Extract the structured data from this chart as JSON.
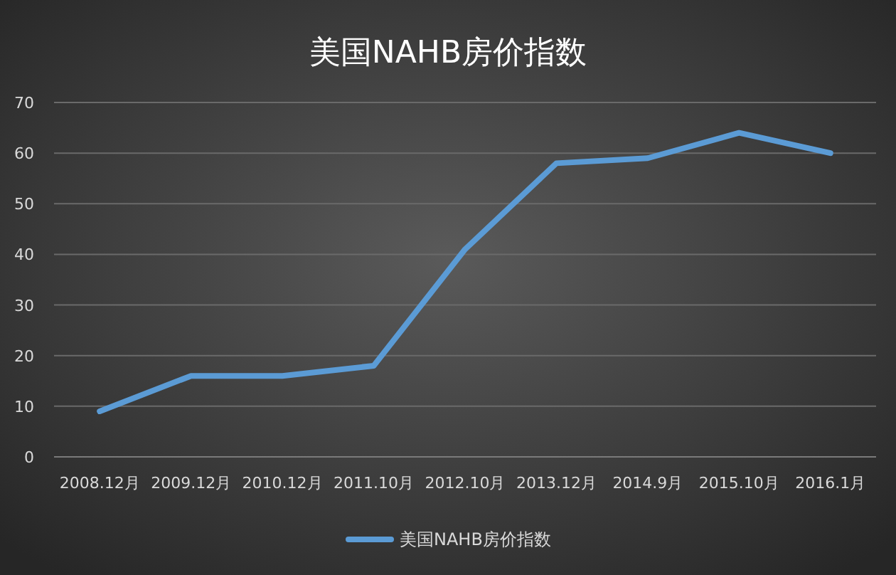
{
  "chart_data": {
    "type": "line",
    "title": "美国NAHB房价指数",
    "categories": [
      "2008.12月",
      "2009.12月",
      "2010.12月",
      "2011.10月",
      "2012.10月",
      "2013.12月",
      "2014.9月",
      "2015.10月",
      "2016.1月"
    ],
    "series": [
      {
        "name": "美国NAHB房价指数",
        "color": "#5b9bd5",
        "values": [
          9,
          16,
          16,
          18,
          41,
          58,
          59,
          64,
          60
        ]
      }
    ],
    "ylim": [
      0,
      70
    ],
    "yticks": [
      0,
      10,
      20,
      30,
      40,
      50,
      60,
      70
    ],
    "grid": "y",
    "legend": "bottom",
    "marker": "none",
    "line_style": "solid"
  }
}
